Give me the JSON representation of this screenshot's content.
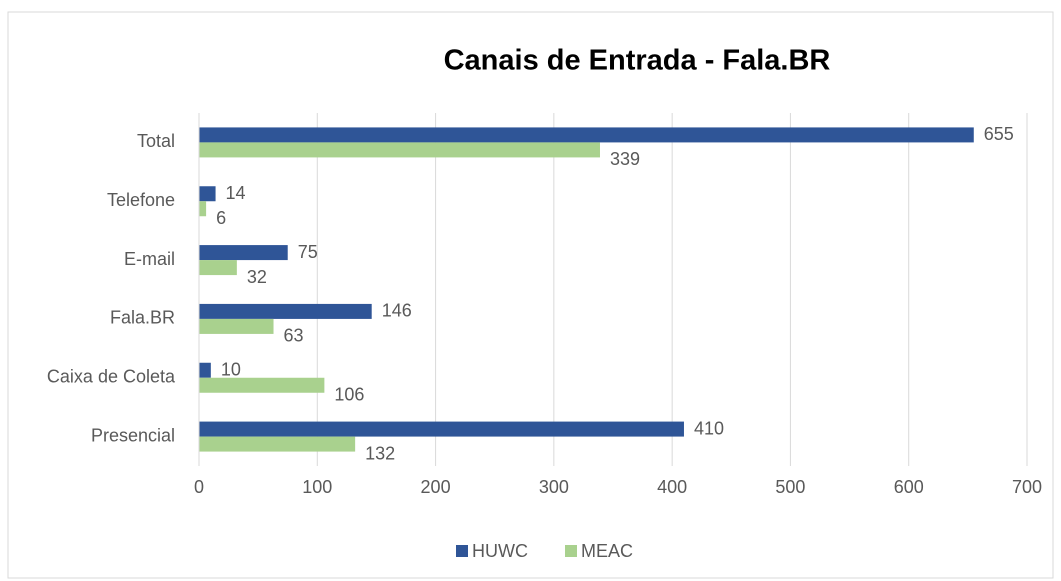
{
  "chart_data": {
    "type": "bar",
    "orientation": "horizontal",
    "title": "Canais de Entrada - Fala.BR",
    "categories": [
      "Total",
      "Telefone",
      "E-mail",
      "Fala.BR",
      "Caixa de Coleta",
      "Presencial"
    ],
    "series": [
      {
        "name": "HUWC",
        "color": "#2f5597",
        "values": [
          655,
          14,
          75,
          146,
          10,
          410
        ]
      },
      {
        "name": "MEAC",
        "color": "#a9d18e",
        "values": [
          339,
          6,
          32,
          63,
          106,
          132
        ]
      }
    ],
    "xlim": [
      0,
      700
    ],
    "xticks": [
      0,
      100,
      200,
      300,
      400,
      500,
      600,
      700
    ],
    "grid": true,
    "legend": "bottom"
  }
}
